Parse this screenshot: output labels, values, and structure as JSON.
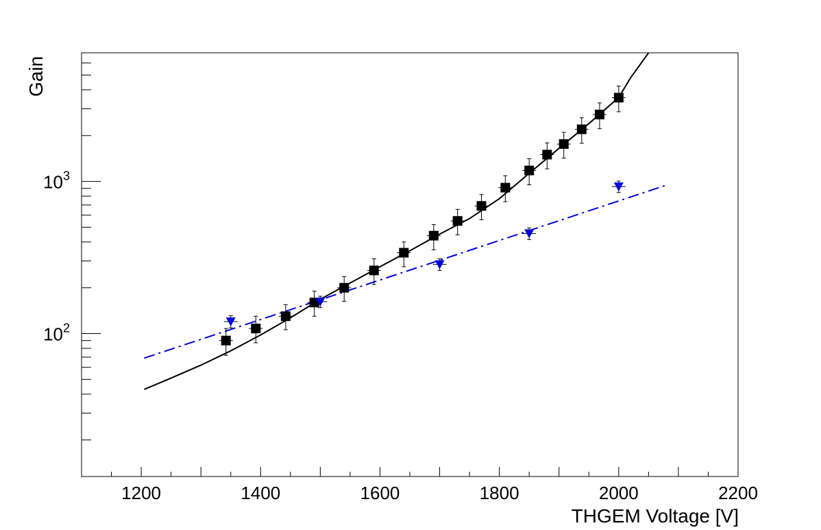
{
  "chart_data": {
    "type": "scatter",
    "xlabel": "THGEM Voltage [V]",
    "ylabel": "Gain",
    "xlim": [
      1100,
      2200
    ],
    "ylim": [
      11.5,
      7000
    ],
    "yscale": "log",
    "grid": false,
    "x_tick_labels": [
      "1200",
      "1400",
      "1600",
      "1800",
      "2000",
      "2200"
    ],
    "y_tick_labels": [
      {
        "base": "10",
        "exp": "2",
        "value": 100
      },
      {
        "base": "10",
        "exp": "3",
        "value": 1000
      }
    ],
    "series": [
      {
        "marker": "square",
        "color": "#000000",
        "points": [
          {
            "x": 1342,
            "y": 90,
            "lo": 72,
            "hi": 108
          },
          {
            "x": 1392,
            "y": 108,
            "lo": 87,
            "hi": 130
          },
          {
            "x": 1442,
            "y": 130,
            "lo": 106,
            "hi": 155
          },
          {
            "x": 1490,
            "y": 160,
            "lo": 130,
            "hi": 190
          },
          {
            "x": 1540,
            "y": 200,
            "lo": 163,
            "hi": 237
          },
          {
            "x": 1590,
            "y": 260,
            "lo": 210,
            "hi": 310
          },
          {
            "x": 1640,
            "y": 340,
            "lo": 275,
            "hi": 400
          },
          {
            "x": 1690,
            "y": 440,
            "lo": 355,
            "hi": 520
          },
          {
            "x": 1730,
            "y": 550,
            "lo": 445,
            "hi": 655
          },
          {
            "x": 1770,
            "y": 690,
            "lo": 560,
            "hi": 820
          },
          {
            "x": 1810,
            "y": 910,
            "lo": 735,
            "hi": 1090
          },
          {
            "x": 1850,
            "y": 1180,
            "lo": 950,
            "hi": 1410
          },
          {
            "x": 1880,
            "y": 1500,
            "lo": 1210,
            "hi": 1790
          },
          {
            "x": 1908,
            "y": 1760,
            "lo": 1420,
            "hi": 2100
          },
          {
            "x": 1938,
            "y": 2200,
            "lo": 1780,
            "hi": 2620
          },
          {
            "x": 1968,
            "y": 2750,
            "lo": 2220,
            "hi": 3280
          },
          {
            "x": 2000,
            "y": 3550,
            "lo": 2870,
            "hi": 4230
          }
        ],
        "fit": [
          [
            1205,
            43
          ],
          [
            1250,
            51
          ],
          [
            1300,
            62
          ],
          [
            1350,
            77
          ],
          [
            1400,
            98
          ],
          [
            1450,
            127
          ],
          [
            1500,
            168
          ],
          [
            1550,
            215
          ],
          [
            1600,
            275
          ],
          [
            1650,
            350
          ],
          [
            1700,
            450
          ],
          [
            1750,
            570
          ],
          [
            1800,
            770
          ],
          [
            1850,
            1130
          ],
          [
            1900,
            1650
          ],
          [
            1950,
            2400
          ],
          [
            2000,
            3560
          ],
          [
            2020,
            4800
          ],
          [
            2050,
            7000
          ]
        ]
      },
      {
        "marker": "triangle-down",
        "color": "#0000dd",
        "points": [
          {
            "x": 1350,
            "y": 120,
            "lo": 109,
            "hi": 131
          },
          {
            "x": 1500,
            "y": 162,
            "lo": 148,
            "hi": 176
          },
          {
            "x": 1700,
            "y": 285,
            "lo": 260,
            "hi": 310
          },
          {
            "x": 1850,
            "y": 455,
            "lo": 415,
            "hi": 495
          },
          {
            "x": 2000,
            "y": 925,
            "lo": 845,
            "hi": 1005
          }
        ],
        "fit": [
          [
            1205,
            69
          ],
          [
            2080,
            945
          ]
        ]
      }
    ]
  }
}
